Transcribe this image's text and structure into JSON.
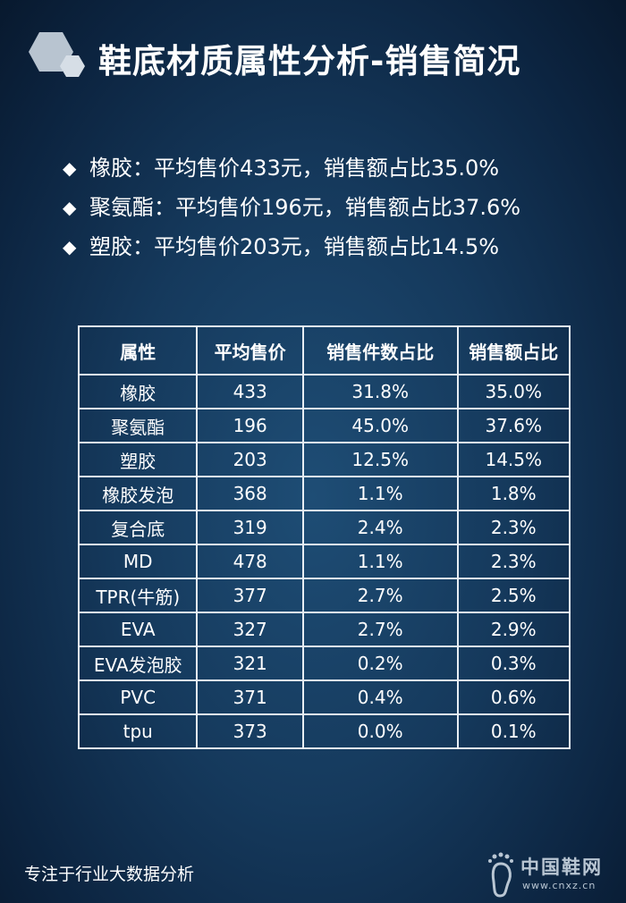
{
  "title": "鞋底材质属性分析-销售简况",
  "bullets": [
    {
      "icon": "diamond-bullet-icon",
      "text": "橡胶：平均售价433元，销售额占比35.0%"
    },
    {
      "icon": "diamond-bullet-icon",
      "text": "聚氨酯：平均售价196元，销售额占比37.6%"
    },
    {
      "icon": "diamond-bullet-icon",
      "text": "塑胶：平均售价203元，销售额占比14.5%"
    }
  ],
  "table": {
    "headers": [
      "属性",
      "平均售价",
      "销售件数占比",
      "销售额占比"
    ],
    "rows": [
      [
        "橡胶",
        "433",
        "31.8%",
        "35.0%"
      ],
      [
        "聚氨酯",
        "196",
        "45.0%",
        "37.6%"
      ],
      [
        "塑胶",
        "203",
        "12.5%",
        "14.5%"
      ],
      [
        "橡胶发泡",
        "368",
        "1.1%",
        "1.8%"
      ],
      [
        "复合底",
        "319",
        "2.4%",
        "2.3%"
      ],
      [
        "MD",
        "478",
        "1.1%",
        "2.3%"
      ],
      [
        "TPR(牛筋)",
        "377",
        "2.7%",
        "2.5%"
      ],
      [
        "EVA",
        "327",
        "2.7%",
        "2.9%"
      ],
      [
        "EVA发泡胶",
        "321",
        "0.2%",
        "0.3%"
      ],
      [
        "PVC",
        "371",
        "0.4%",
        "0.6%"
      ],
      [
        "tpu",
        "373",
        "0.0%",
        "0.1%"
      ]
    ]
  },
  "footer": "专注于行业大数据分析",
  "watermark": {
    "name": "中国鞋网",
    "url": "www.cnxz.cn",
    "icon": "footprint-logo-icon"
  },
  "colors": {
    "background": "#15395c",
    "text": "#ffffff",
    "grid": "#e8eef4"
  }
}
